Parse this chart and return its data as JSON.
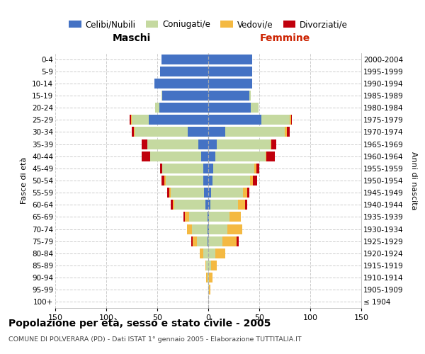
{
  "age_groups": [
    "100+",
    "95-99",
    "90-94",
    "85-89",
    "80-84",
    "75-79",
    "70-74",
    "65-69",
    "60-64",
    "55-59",
    "50-54",
    "45-49",
    "40-44",
    "35-39",
    "30-34",
    "25-29",
    "20-24",
    "15-19",
    "10-14",
    "5-9",
    "0-4"
  ],
  "birth_years": [
    "≤ 1904",
    "1905-1909",
    "1910-1914",
    "1915-1919",
    "1920-1924",
    "1925-1929",
    "1930-1934",
    "1935-1939",
    "1940-1944",
    "1945-1949",
    "1950-1954",
    "1955-1959",
    "1960-1964",
    "1965-1969",
    "1970-1974",
    "1975-1979",
    "1980-1984",
    "1985-1989",
    "1990-1994",
    "1995-1999",
    "2000-2004"
  ],
  "males": {
    "celibe": [
      0,
      0,
      0,
      0,
      0,
      1,
      1,
      1,
      3,
      4,
      5,
      5,
      7,
      10,
      20,
      58,
      48,
      45,
      53,
      47,
      46
    ],
    "coniugato": [
      0,
      0,
      1,
      2,
      5,
      10,
      15,
      18,
      30,
      33,
      37,
      40,
      50,
      50,
      52,
      17,
      4,
      1,
      0,
      0,
      0
    ],
    "vedovo": [
      0,
      0,
      1,
      1,
      3,
      4,
      5,
      4,
      2,
      1,
      1,
      0,
      0,
      0,
      1,
      1,
      0,
      0,
      0,
      0,
      0
    ],
    "divorziato": [
      0,
      0,
      0,
      0,
      0,
      2,
      0,
      1,
      2,
      2,
      3,
      2,
      8,
      5,
      2,
      1,
      0,
      0,
      0,
      0,
      0
    ]
  },
  "females": {
    "nubile": [
      0,
      0,
      0,
      0,
      0,
      0,
      1,
      1,
      2,
      3,
      4,
      5,
      7,
      8,
      17,
      52,
      42,
      40,
      43,
      43,
      43
    ],
    "coniugata": [
      0,
      1,
      1,
      3,
      7,
      14,
      18,
      20,
      27,
      31,
      37,
      40,
      49,
      53,
      58,
      28,
      7,
      2,
      0,
      0,
      0
    ],
    "vedova": [
      0,
      1,
      3,
      5,
      10,
      14,
      14,
      11,
      7,
      4,
      3,
      2,
      1,
      1,
      2,
      1,
      0,
      0,
      0,
      0,
      0
    ],
    "divorziata": [
      0,
      0,
      0,
      0,
      0,
      2,
      0,
      0,
      2,
      2,
      4,
      3,
      8,
      5,
      3,
      1,
      0,
      0,
      0,
      0,
      0
    ]
  },
  "colors": {
    "celibe_nubile": "#4472C4",
    "coniugato_a": "#C5D9A0",
    "vedovo_a": "#F4B942",
    "divorziato_a": "#C0000C"
  },
  "xlim": 150,
  "title": "Popolazione per età, sesso e stato civile - 2005",
  "subtitle": "COMUNE DI POLVERARA (PD) - Dati ISTAT 1° gennaio 2005 - Elaborazione TUTTITALIA.IT",
  "ylabel_left": "Fasce di età",
  "ylabel_right": "Anni di nascita",
  "xlabel_left": "Maschi",
  "xlabel_right": "Femmine"
}
